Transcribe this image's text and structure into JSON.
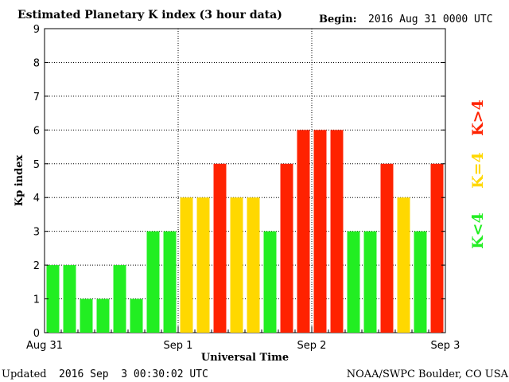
{
  "header": {
    "title": "Estimated Planetary K index (3 hour data)",
    "begin_label": "Begin:",
    "begin_value": "2016 Aug 31 0000 UTC"
  },
  "footer": {
    "updated_label": "Updated",
    "updated_value": "2016 Sep  3 00:30:02 UTC",
    "source": "NOAA/SWPC Boulder, CO USA"
  },
  "legend": {
    "below": {
      "label": "K<4",
      "color": "#22ee22"
    },
    "equal": {
      "label": "K=4",
      "color": "#ffd800"
    },
    "above": {
      "label": "K>4",
      "color": "#ff2200"
    }
  },
  "chart_data": {
    "type": "bar",
    "title": "Estimated Planetary K index (3 hour data)",
    "xlabel": "Universal Time",
    "ylabel": "Kp index",
    "ylim": [
      0,
      9
    ],
    "yticks": [
      "0",
      "1",
      "2",
      "3",
      "4",
      "5",
      "6",
      "7",
      "8",
      "9"
    ],
    "xticks": [
      "Aug 31",
      "Sep 1",
      "Sep 2",
      "Sep 3"
    ],
    "grid": true,
    "categories": [
      "Aug 31 00",
      "Aug 31 03",
      "Aug 31 06",
      "Aug 31 09",
      "Aug 31 12",
      "Aug 31 15",
      "Aug 31 18",
      "Aug 31 21",
      "Sep 1 00",
      "Sep 1 03",
      "Sep 1 06",
      "Sep 1 09",
      "Sep 1 12",
      "Sep 1 15",
      "Sep 1 18",
      "Sep 1 21",
      "Sep 2 00",
      "Sep 2 03",
      "Sep 2 06",
      "Sep 2 09",
      "Sep 2 12",
      "Sep 2 15",
      "Sep 2 18",
      "Sep 2 21"
    ],
    "values": [
      2,
      2,
      1,
      1,
      2,
      1,
      3,
      3,
      4,
      4,
      5,
      4,
      4,
      3,
      5,
      6,
      6,
      6,
      3,
      3,
      5,
      4,
      3,
      5
    ],
    "colors": {
      "below": "#22ee22",
      "equal": "#ffd800",
      "above": "#ff2200"
    }
  }
}
